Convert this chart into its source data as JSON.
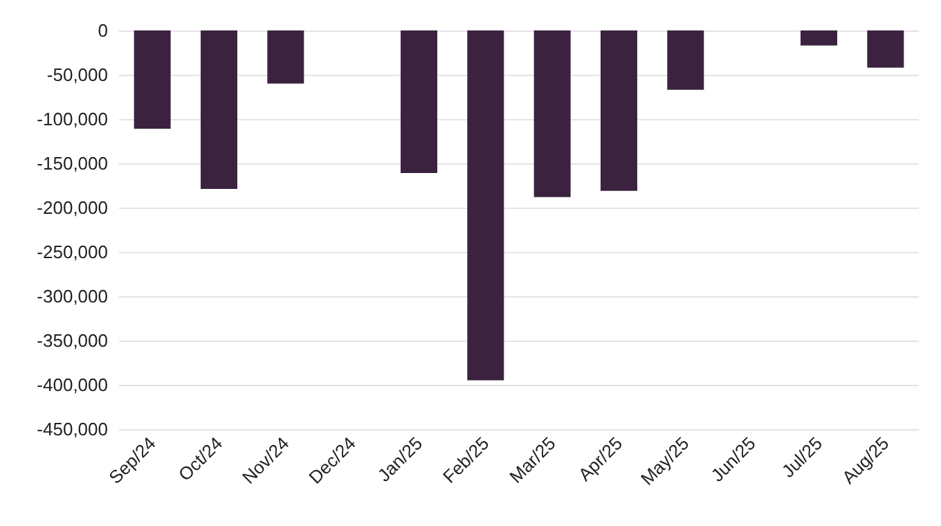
{
  "chart_data": {
    "type": "bar",
    "categories": [
      "Sep/24",
      "Oct/24",
      "Nov/24",
      "Dec/24",
      "Jan/25",
      "Feb/25",
      "Mar/25",
      "Apr/25",
      "May/25",
      "Jun/25",
      "Jul/25",
      "Aug/25"
    ],
    "values": [
      -111000,
      -179000,
      -60000,
      0,
      -161000,
      -395000,
      -188000,
      -181000,
      -67000,
      0,
      -17000,
      -42000
    ],
    "color": "#3b2340",
    "ylim": [
      -450000,
      0
    ],
    "yticks": [
      {
        "value": -450000,
        "label": "-450,000"
      },
      {
        "value": -400000,
        "label": "-400,000"
      },
      {
        "value": -350000,
        "label": "-350,000"
      },
      {
        "value": -300000,
        "label": "-300,000"
      },
      {
        "value": -250000,
        "label": "-250,000"
      },
      {
        "value": -200000,
        "label": "-200,000"
      },
      {
        "value": -150000,
        "label": "-150,000"
      },
      {
        "value": -100000,
        "label": "-100,000"
      },
      {
        "value": -50000,
        "label": "-50,000"
      },
      0
    ],
    "grid": "y"
  }
}
